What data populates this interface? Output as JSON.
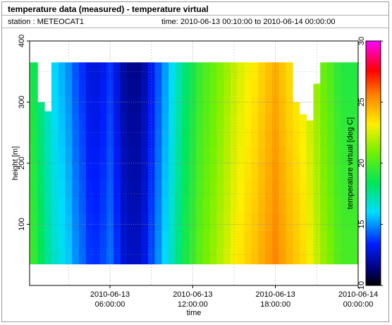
{
  "header": {
    "title": "temperature data (measured) - temperature virtual",
    "station": "station : METEOCAT1",
    "timerange": "time: 2010-06-13 00:10:00 to 2010-06-14 00:00:00"
  },
  "chart_data": {
    "type": "heatmap",
    "title": "temperature data (measured) - temperature virtual",
    "xlabel": "time",
    "ylabel": "height [m]",
    "colorbar_label": "temperature virtual [deg C]",
    "y_ticks": [
      100,
      200,
      300,
      400
    ],
    "ylim": [
      0,
      400
    ],
    "x_ticks": [
      {
        "hour": 6,
        "line1": "2010-06-13",
        "line2": "06:00:00"
      },
      {
        "hour": 12,
        "line1": "2010-06-13",
        "line2": "12:00:00"
      },
      {
        "hour": 18,
        "line1": "2010-06-13",
        "line2": "18:00:00"
      },
      {
        "hour": 24,
        "line1": "2010-06-14",
        "line2": "00:00:00"
      }
    ],
    "xlim_hours": [
      0.17,
      24
    ],
    "colorbar_ticks": [
      10,
      15,
      20,
      25,
      30
    ],
    "colorbar_range": [
      10,
      30
    ],
    "grid": true,
    "height_range_m": [
      35,
      365
    ],
    "hours": [
      0.17,
      0.5,
      1,
      1.5,
      2,
      2.5,
      3,
      3.5,
      4,
      4.5,
      5,
      5.5,
      6,
      6.5,
      7,
      7.5,
      8,
      8.5,
      9,
      9.5,
      10,
      10.5,
      11,
      11.5,
      12,
      12.5,
      13,
      13.5,
      14,
      14.5,
      15,
      15.5,
      16,
      16.5,
      17,
      17.5,
      18,
      18.5,
      19,
      19.5,
      20,
      20.5,
      21,
      21.5,
      22,
      22.5,
      23,
      23.5,
      24
    ],
    "temperature_c": [
      19.5,
      19.0,
      18.0,
      17.0,
      16.3,
      15.8,
      15.3,
      14.5,
      14.0,
      13.3,
      13.2,
      13.5,
      14.0,
      13.2,
      12.3,
      12.0,
      12.0,
      12.5,
      13.5,
      14.5,
      15.5,
      16.5,
      17.5,
      18.5,
      19.2,
      20.0,
      20.5,
      21.0,
      21.5,
      22.0,
      22.6,
      23.0,
      23.4,
      23.7,
      24.2,
      24.6,
      25.0,
      24.5,
      24.0,
      23.6,
      23.2,
      22.5,
      21.8,
      21.0,
      20.5,
      19.8,
      19.5,
      19.5,
      19.5
    ],
    "top_m": [
      365,
      365,
      300,
      285,
      365,
      365,
      365,
      365,
      365,
      365,
      365,
      365,
      365,
      365,
      365,
      365,
      365,
      365,
      365,
      365,
      365,
      365,
      365,
      365,
      365,
      365,
      365,
      365,
      365,
      365,
      365,
      365,
      365,
      365,
      365,
      365,
      365,
      365,
      365,
      300,
      280,
      270,
      330,
      365,
      365,
      365,
      365,
      365,
      365
    ]
  }
}
